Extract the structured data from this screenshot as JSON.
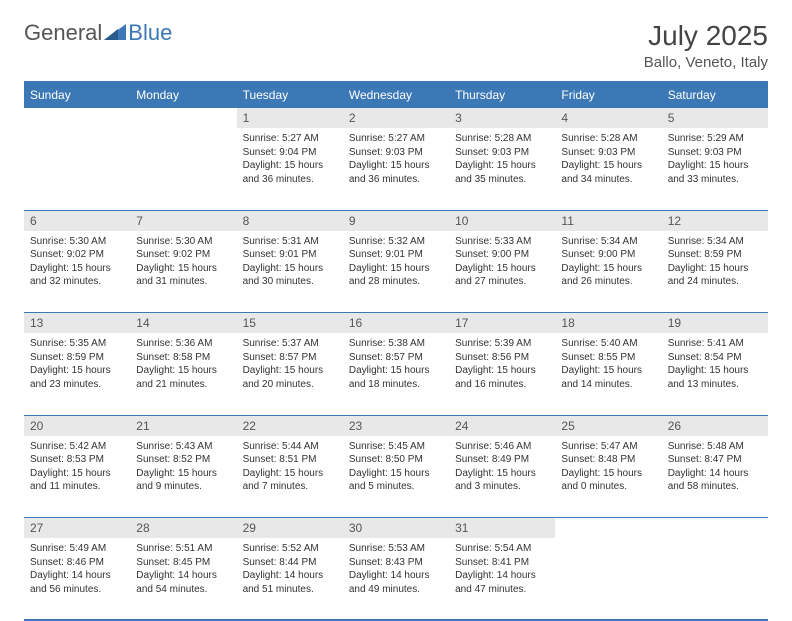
{
  "logo": {
    "text1": "General",
    "text2": "Blue",
    "color1": "#6d6d6d",
    "color2": "#3b78b5"
  },
  "title": "July 2025",
  "location": "Ballo, Veneto, Italy",
  "accent_color": "#3b78b5",
  "daynum_bg": "#e8e8e8",
  "text_color": "#333333",
  "weekdays": [
    "Sunday",
    "Monday",
    "Tuesday",
    "Wednesday",
    "Thursday",
    "Friday",
    "Saturday"
  ],
  "weeks": [
    [
      null,
      null,
      {
        "n": 1,
        "sr": "5:27 AM",
        "ss": "9:04 PM",
        "dl": "15 hours and 36 minutes."
      },
      {
        "n": 2,
        "sr": "5:27 AM",
        "ss": "9:03 PM",
        "dl": "15 hours and 36 minutes."
      },
      {
        "n": 3,
        "sr": "5:28 AM",
        "ss": "9:03 PM",
        "dl": "15 hours and 35 minutes."
      },
      {
        "n": 4,
        "sr": "5:28 AM",
        "ss": "9:03 PM",
        "dl": "15 hours and 34 minutes."
      },
      {
        "n": 5,
        "sr": "5:29 AM",
        "ss": "9:03 PM",
        "dl": "15 hours and 33 minutes."
      }
    ],
    [
      {
        "n": 6,
        "sr": "5:30 AM",
        "ss": "9:02 PM",
        "dl": "15 hours and 32 minutes."
      },
      {
        "n": 7,
        "sr": "5:30 AM",
        "ss": "9:02 PM",
        "dl": "15 hours and 31 minutes."
      },
      {
        "n": 8,
        "sr": "5:31 AM",
        "ss": "9:01 PM",
        "dl": "15 hours and 30 minutes."
      },
      {
        "n": 9,
        "sr": "5:32 AM",
        "ss": "9:01 PM",
        "dl": "15 hours and 28 minutes."
      },
      {
        "n": 10,
        "sr": "5:33 AM",
        "ss": "9:00 PM",
        "dl": "15 hours and 27 minutes."
      },
      {
        "n": 11,
        "sr": "5:34 AM",
        "ss": "9:00 PM",
        "dl": "15 hours and 26 minutes."
      },
      {
        "n": 12,
        "sr": "5:34 AM",
        "ss": "8:59 PM",
        "dl": "15 hours and 24 minutes."
      }
    ],
    [
      {
        "n": 13,
        "sr": "5:35 AM",
        "ss": "8:59 PM",
        "dl": "15 hours and 23 minutes."
      },
      {
        "n": 14,
        "sr": "5:36 AM",
        "ss": "8:58 PM",
        "dl": "15 hours and 21 minutes."
      },
      {
        "n": 15,
        "sr": "5:37 AM",
        "ss": "8:57 PM",
        "dl": "15 hours and 20 minutes."
      },
      {
        "n": 16,
        "sr": "5:38 AM",
        "ss": "8:57 PM",
        "dl": "15 hours and 18 minutes."
      },
      {
        "n": 17,
        "sr": "5:39 AM",
        "ss": "8:56 PM",
        "dl": "15 hours and 16 minutes."
      },
      {
        "n": 18,
        "sr": "5:40 AM",
        "ss": "8:55 PM",
        "dl": "15 hours and 14 minutes."
      },
      {
        "n": 19,
        "sr": "5:41 AM",
        "ss": "8:54 PM",
        "dl": "15 hours and 13 minutes."
      }
    ],
    [
      {
        "n": 20,
        "sr": "5:42 AM",
        "ss": "8:53 PM",
        "dl": "15 hours and 11 minutes."
      },
      {
        "n": 21,
        "sr": "5:43 AM",
        "ss": "8:52 PM",
        "dl": "15 hours and 9 minutes."
      },
      {
        "n": 22,
        "sr": "5:44 AM",
        "ss": "8:51 PM",
        "dl": "15 hours and 7 minutes."
      },
      {
        "n": 23,
        "sr": "5:45 AM",
        "ss": "8:50 PM",
        "dl": "15 hours and 5 minutes."
      },
      {
        "n": 24,
        "sr": "5:46 AM",
        "ss": "8:49 PM",
        "dl": "15 hours and 3 minutes."
      },
      {
        "n": 25,
        "sr": "5:47 AM",
        "ss": "8:48 PM",
        "dl": "15 hours and 0 minutes."
      },
      {
        "n": 26,
        "sr": "5:48 AM",
        "ss": "8:47 PM",
        "dl": "14 hours and 58 minutes."
      }
    ],
    [
      {
        "n": 27,
        "sr": "5:49 AM",
        "ss": "8:46 PM",
        "dl": "14 hours and 56 minutes."
      },
      {
        "n": 28,
        "sr": "5:51 AM",
        "ss": "8:45 PM",
        "dl": "14 hours and 54 minutes."
      },
      {
        "n": 29,
        "sr": "5:52 AM",
        "ss": "8:44 PM",
        "dl": "14 hours and 51 minutes."
      },
      {
        "n": 30,
        "sr": "5:53 AM",
        "ss": "8:43 PM",
        "dl": "14 hours and 49 minutes."
      },
      {
        "n": 31,
        "sr": "5:54 AM",
        "ss": "8:41 PM",
        "dl": "14 hours and 47 minutes."
      },
      null,
      null
    ]
  ],
  "labels": {
    "sunrise": "Sunrise:",
    "sunset": "Sunset:",
    "daylight": "Daylight:"
  }
}
